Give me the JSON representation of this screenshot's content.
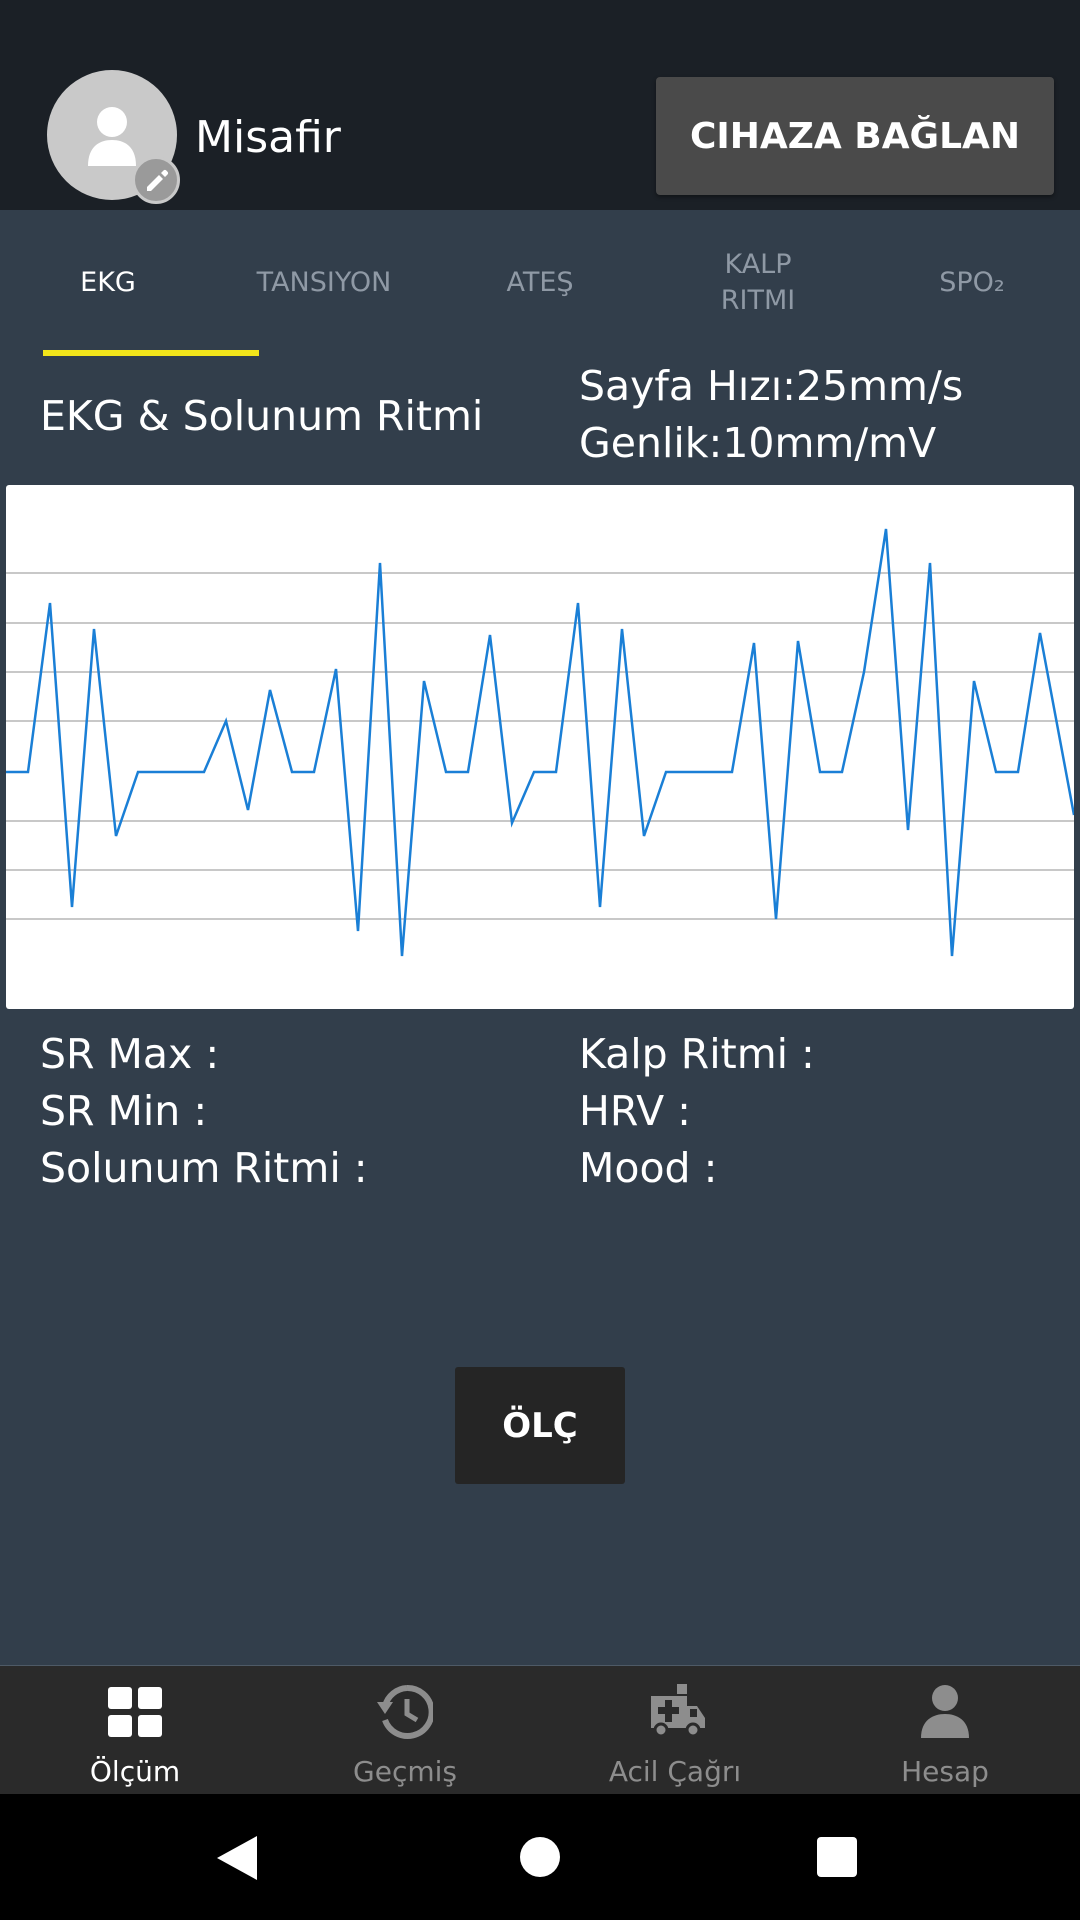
{
  "header": {
    "user_name": "Misafir",
    "connect_button": "CIHAZA BAĞLAN"
  },
  "tabs": [
    {
      "label": "EKG",
      "active": true
    },
    {
      "label": "TANSIYON",
      "active": false
    },
    {
      "label": "ATEŞ",
      "active": false
    },
    {
      "label": "KALP RITMI",
      "active": false
    },
    {
      "label": "SPO₂",
      "active": false
    }
  ],
  "section": {
    "title": "EKG & Solunum Ritmi",
    "speed": "Sayfa Hızı:25mm/s",
    "amplitude": "Genlik:10mm/mV"
  },
  "stats": {
    "sr_max": "SR Max :",
    "sr_min": "SR Min :",
    "respiration": "Solunum Ritmi :",
    "heart_rate": "Kalp Ritmi :",
    "hrv": "HRV :",
    "mood": "Mood :"
  },
  "measure_button": "ÖLÇ",
  "bottom_nav": [
    {
      "label": "Ölçüm",
      "icon": "dashboard-icon",
      "active": true
    },
    {
      "label": "Geçmiş",
      "icon": "history-icon",
      "active": false
    },
    {
      "label": "Acil Çağrı",
      "icon": "ambulance-icon",
      "active": false
    },
    {
      "label": "Hesap",
      "icon": "person-icon",
      "active": false
    }
  ],
  "colors": {
    "header_bg": "#1b2026",
    "content_bg": "#323e4b",
    "tab_indicator": "#f2e51a",
    "trace": "#1a7fd6",
    "grid": "#c8c8c8"
  }
}
